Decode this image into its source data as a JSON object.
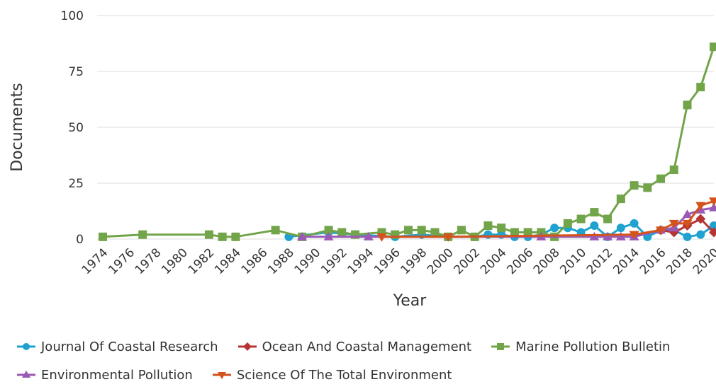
{
  "chart_data": {
    "type": "line",
    "xlabel": "Year",
    "ylabel": "Documents",
    "xlim": [
      1974,
      2020
    ],
    "ylim": [
      0,
      100
    ],
    "yticks": [
      0,
      25,
      50,
      75,
      100
    ],
    "xticks": [
      1974,
      1976,
      1978,
      1980,
      1982,
      1984,
      1986,
      1988,
      1990,
      1992,
      1994,
      1996,
      1998,
      2000,
      2002,
      2004,
      2006,
      2008,
      2010,
      2012,
      2014,
      2016,
      2018,
      2020
    ],
    "grid": "horizontal",
    "legend": "bottom",
    "series": [
      {
        "name": "Journal Of Coastal Research",
        "color": "#1fa2d0",
        "marker": "circle",
        "points": [
          [
            1988,
            1
          ],
          [
            1991,
            3
          ],
          [
            1993,
            2
          ],
          [
            1996,
            1
          ],
          [
            1998,
            2
          ],
          [
            2000,
            1
          ],
          [
            2002,
            1
          ],
          [
            2003,
            2
          ],
          [
            2004,
            2
          ],
          [
            2005,
            1
          ],
          [
            2006,
            1
          ],
          [
            2007,
            2
          ],
          [
            2008,
            5
          ],
          [
            2009,
            5
          ],
          [
            2010,
            3
          ],
          [
            2011,
            6
          ],
          [
            2012,
            1
          ],
          [
            2013,
            5
          ],
          [
            2014,
            7
          ],
          [
            2015,
            1
          ],
          [
            2016,
            4
          ],
          [
            2017,
            4
          ],
          [
            2018,
            1
          ],
          [
            2019,
            2
          ],
          [
            2020,
            6
          ]
        ]
      },
      {
        "name": "Ocean And Coastal Management",
        "color": "#b53535",
        "marker": "diamond",
        "points": [
          [
            2016,
            4
          ],
          [
            2017,
            3
          ],
          [
            2018,
            6
          ],
          [
            2019,
            9
          ],
          [
            2020,
            3
          ]
        ]
      },
      {
        "name": "Marine Pollution Bulletin",
        "color": "#72a44a",
        "marker": "square",
        "points": [
          [
            1974,
            1
          ],
          [
            1977,
            2
          ],
          [
            1982,
            2
          ],
          [
            1983,
            1
          ],
          [
            1984,
            1
          ],
          [
            1987,
            4
          ],
          [
            1989,
            1
          ],
          [
            1991,
            4
          ],
          [
            1992,
            3
          ],
          [
            1993,
            2
          ],
          [
            1995,
            3
          ],
          [
            1996,
            2
          ],
          [
            1997,
            4
          ],
          [
            1998,
            4
          ],
          [
            1999,
            3
          ],
          [
            2000,
            1
          ],
          [
            2001,
            4
          ],
          [
            2002,
            1
          ],
          [
            2003,
            6
          ],
          [
            2004,
            5
          ],
          [
            2005,
            3
          ],
          [
            2006,
            3
          ],
          [
            2007,
            3
          ],
          [
            2008,
            1
          ],
          [
            2009,
            7
          ],
          [
            2010,
            9
          ],
          [
            2011,
            12
          ],
          [
            2012,
            9
          ],
          [
            2013,
            18
          ],
          [
            2014,
            24
          ],
          [
            2015,
            23
          ],
          [
            2016,
            27
          ],
          [
            2017,
            31
          ],
          [
            2018,
            60
          ],
          [
            2019,
            68
          ],
          [
            2020,
            86
          ]
        ]
      },
      {
        "name": "Environmental Pollution",
        "color": "#9b59b6",
        "marker": "triangle-up",
        "points": [
          [
            1989,
            1
          ],
          [
            1991,
            1
          ],
          [
            1994,
            1
          ],
          [
            2007,
            1
          ],
          [
            2011,
            1
          ],
          [
            2012,
            1
          ],
          [
            2013,
            1
          ],
          [
            2014,
            1
          ],
          [
            2016,
            4
          ],
          [
            2017,
            5
          ],
          [
            2018,
            11
          ],
          [
            2019,
            13
          ],
          [
            2020,
            14
          ]
        ]
      },
      {
        "name": "Science Of The Total Environment",
        "color": "#d4531b",
        "marker": "triangle-down",
        "points": [
          [
            1995,
            1
          ],
          [
            2000,
            1
          ],
          [
            2014,
            2
          ],
          [
            2016,
            4
          ],
          [
            2017,
            7
          ],
          [
            2018,
            7
          ],
          [
            2019,
            15
          ],
          [
            2020,
            17
          ]
        ]
      }
    ]
  },
  "legend_rows": [
    [
      0,
      1,
      2
    ],
    [
      3,
      4
    ]
  ]
}
